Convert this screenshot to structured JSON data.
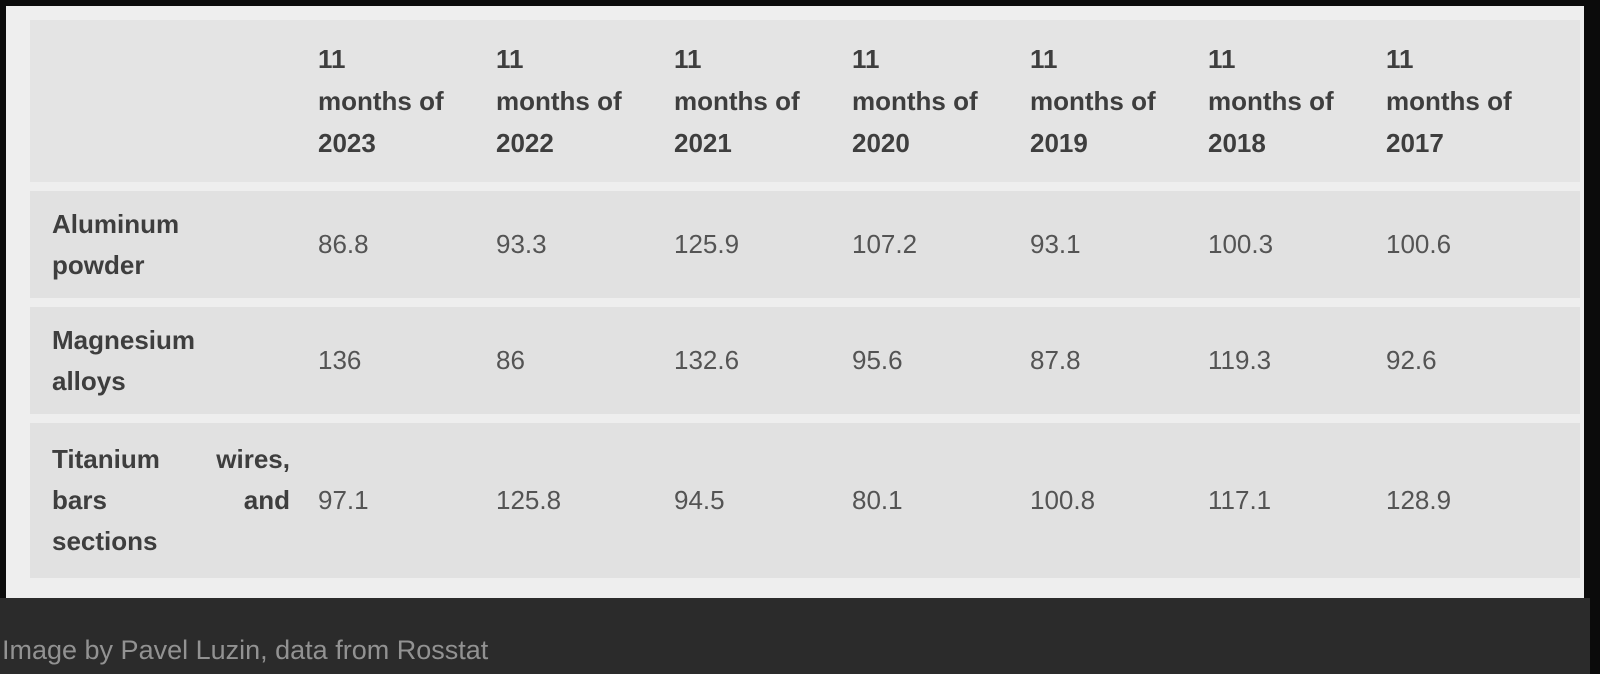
{
  "colors": {
    "frame_black": "#0b0b0b",
    "content_bg": "#eeeeee",
    "header_band_bg": "#e4e4e4",
    "row_band_bg": "#e1e1e1",
    "header_text": "#3e3e3e",
    "value_text": "#545454",
    "caption_bar_bg": "#2b2b2b",
    "caption_text": "#929292"
  },
  "table": {
    "columns": [
      [
        "11",
        "months of",
        "2023"
      ],
      [
        "11",
        "months of",
        "2022"
      ],
      [
        "11",
        "months of",
        "2021"
      ],
      [
        "11",
        "months of",
        "2020"
      ],
      [
        "11",
        "months of",
        "2019"
      ],
      [
        "11",
        "months of",
        "2018"
      ],
      [
        "11",
        "months of",
        "2017"
      ]
    ],
    "rows": [
      {
        "label": "Aluminum powder",
        "lines": [
          [
            "Aluminum"
          ],
          [
            "powder"
          ]
        ],
        "values": [
          "86.8",
          "93.3",
          "125.9",
          "107.2",
          "93.1",
          "100.3",
          "100.6"
        ]
      },
      {
        "label": "Magnesium alloys",
        "lines": [
          [
            "Magnesium"
          ],
          [
            "alloys"
          ]
        ],
        "values": [
          "136",
          "86",
          "132.6",
          "95.6",
          "87.8",
          "119.3",
          "92.6"
        ]
      },
      {
        "label": "Titanium wires, bars and sections",
        "lines": [
          [
            "Titanium",
            "wires,"
          ],
          [
            "bars",
            "and"
          ],
          [
            "sections"
          ]
        ],
        "values": [
          "97.1",
          "125.8",
          "94.5",
          "80.1",
          "100.8",
          "117.1",
          "128.9"
        ]
      }
    ]
  },
  "caption": {
    "text": "Image by Pavel Luzin, data from Rosstat"
  },
  "chart_data": {
    "type": "table",
    "columns": [
      "11 months of 2023",
      "11 months of 2022",
      "11 months of 2021",
      "11 months of 2020",
      "11 months of 2019",
      "11 months of 2018",
      "11 months of 2017"
    ],
    "rows": [
      {
        "label": "Aluminum powder",
        "values": [
          86.8,
          93.3,
          125.9,
          107.2,
          93.1,
          100.3,
          100.6
        ]
      },
      {
        "label": "Magnesium alloys",
        "values": [
          136,
          86,
          132.6,
          95.6,
          87.8,
          119.3,
          92.6
        ]
      },
      {
        "label": "Titanium wires, bars and sections",
        "values": [
          97.1,
          125.8,
          94.5,
          80.1,
          100.8,
          117.1,
          128.9
        ]
      }
    ],
    "caption": "Image by Pavel Luzin, data from Rosstat"
  }
}
